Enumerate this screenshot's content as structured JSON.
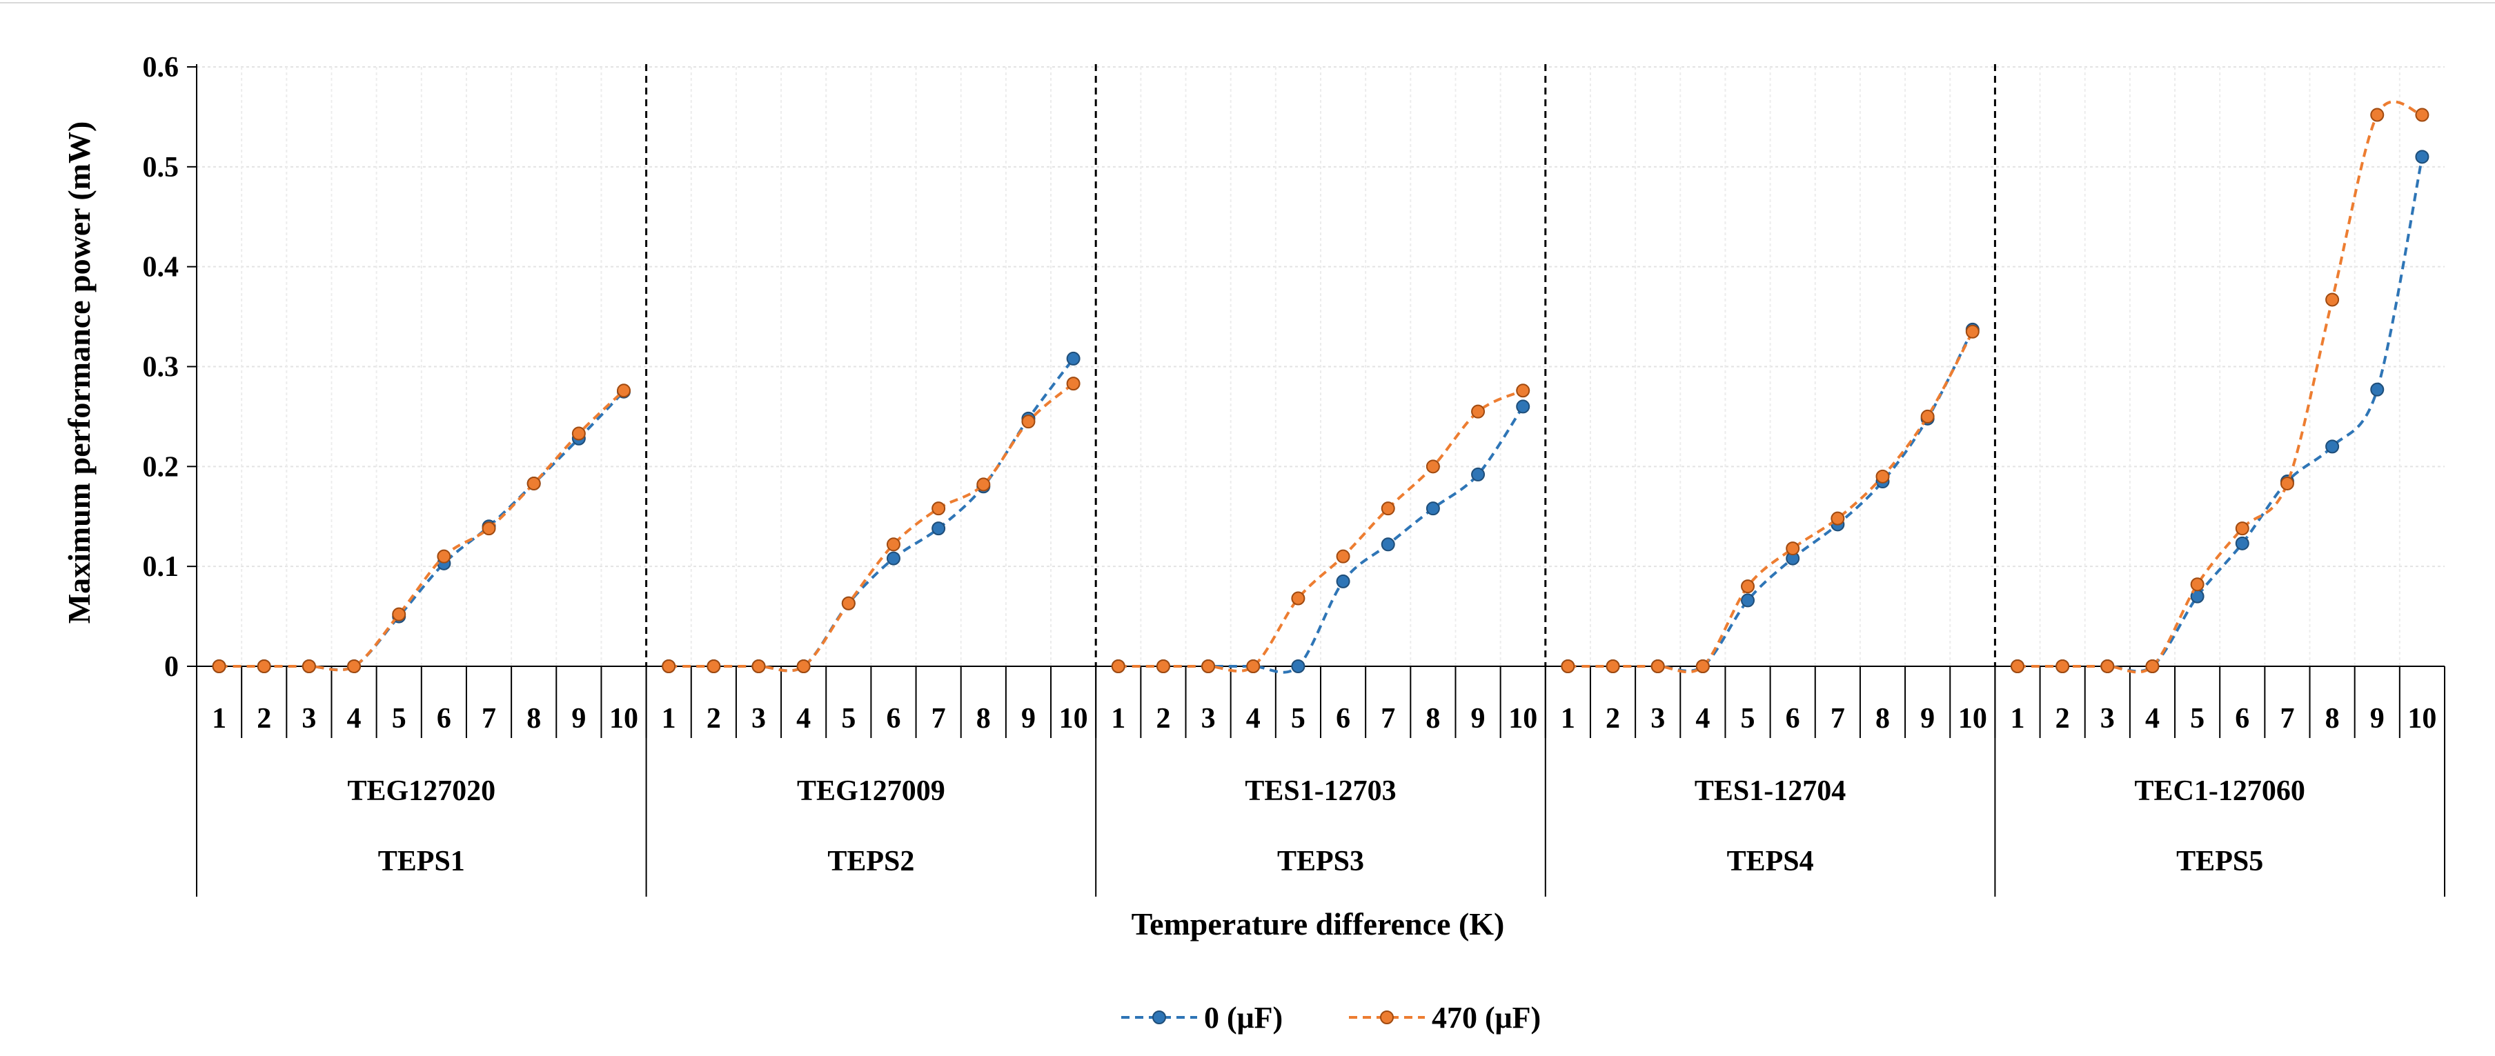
{
  "chart_data": {
    "type": "line",
    "title": "",
    "ylabel": "Maximum performance power (mW)",
    "xlabel": "Temperature difference (K)",
    "ylim": [
      0,
      0.6
    ],
    "yticks": [
      0,
      0.1,
      0.2,
      0.3,
      0.4,
      0.5,
      0.6
    ],
    "ytick_labels": [
      "0",
      "0.1",
      "0.2",
      "0.3",
      "0.4",
      "0.5",
      "0.6"
    ],
    "grid": true,
    "legend_position": "bottom-center",
    "groups": [
      {
        "module": "TEG127020",
        "system": "TEPS1",
        "categories": [
          "1",
          "2",
          "3",
          "4",
          "5",
          "6",
          "7",
          "8",
          "9",
          "10"
        ]
      },
      {
        "module": "TEG127009",
        "system": "TEPS2",
        "categories": [
          "1",
          "2",
          "3",
          "4",
          "5",
          "6",
          "7",
          "8",
          "9",
          "10"
        ]
      },
      {
        "module": "TES1-12703",
        "system": "TEPS3",
        "categories": [
          "1",
          "2",
          "3",
          "4",
          "5",
          "6",
          "7",
          "8",
          "9",
          "10"
        ]
      },
      {
        "module": "TES1-12704",
        "system": "TEPS4",
        "categories": [
          "1",
          "2",
          "3",
          "4",
          "5",
          "6",
          "7",
          "8",
          "9",
          "10"
        ]
      },
      {
        "module": "TEC1-127060",
        "system": "TEPS5",
        "categories": [
          "1",
          "2",
          "3",
          "4",
          "5",
          "6",
          "7",
          "8",
          "9",
          "10"
        ]
      }
    ],
    "series": [
      {
        "name": "0 (μF)",
        "color": "#2E75B6",
        "values": [
          [
            0,
            0,
            0,
            0,
            0.05,
            0.103,
            0.14,
            0.183,
            0.228,
            0.275
          ],
          [
            0,
            0,
            0,
            0,
            0.063,
            0.108,
            0.138,
            0.18,
            0.248,
            0.308
          ],
          [
            0,
            0,
            0,
            0,
            0,
            0.085,
            0.122,
            0.158,
            0.192,
            0.26
          ],
          [
            0,
            0,
            0,
            0,
            0.066,
            0.108,
            0.142,
            0.185,
            0.248,
            0.337
          ],
          [
            0,
            0,
            0,
            0,
            0.07,
            0.123,
            0.185,
            0.22,
            0.277,
            0.51
          ]
        ]
      },
      {
        "name": "470 (μF)",
        "color": "#ED7D31",
        "values": [
          [
            0,
            0,
            0,
            0,
            0.052,
            0.11,
            0.138,
            0.183,
            0.233,
            0.276
          ],
          [
            0,
            0,
            0,
            0,
            0.063,
            0.122,
            0.158,
            0.182,
            0.245,
            0.283
          ],
          [
            0,
            0,
            0,
            0,
            0.068,
            0.11,
            0.158,
            0.2,
            0.255,
            0.276
          ],
          [
            0,
            0,
            0,
            0,
            0.08,
            0.118,
            0.148,
            0.19,
            0.25,
            0.335
          ],
          [
            0,
            0,
            0,
            0,
            0.082,
            0.138,
            0.183,
            0.367,
            0.552,
            0.552
          ]
        ]
      }
    ]
  }
}
